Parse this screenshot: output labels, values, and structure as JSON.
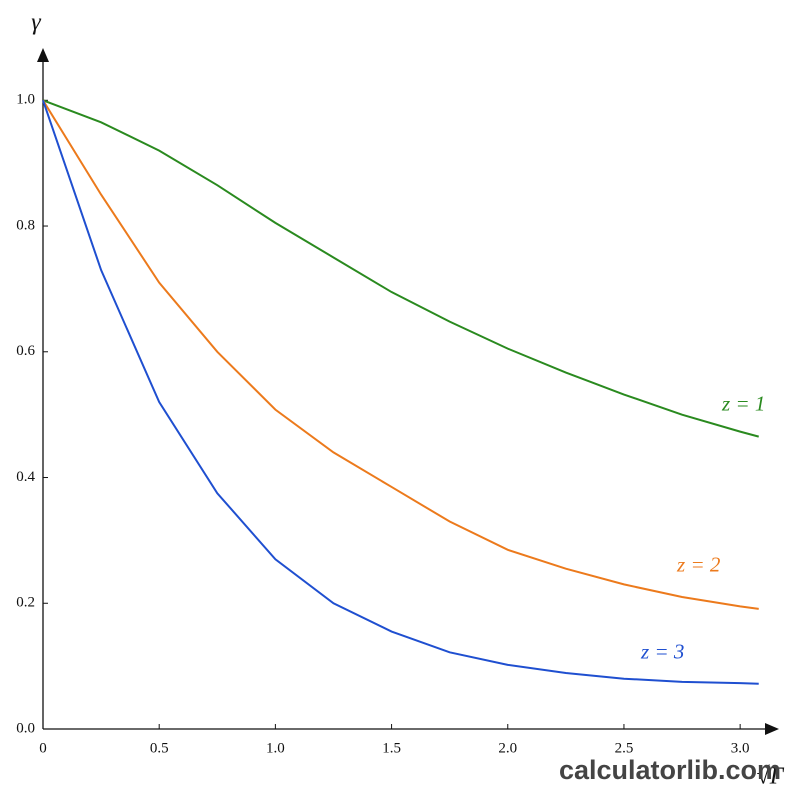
{
  "chart_data": {
    "type": "line",
    "ylabel": "γ",
    "xlabel": "√Γ",
    "watermark": "calculatorlib.com",
    "x": [
      0,
      0.25,
      0.5,
      0.75,
      1.0,
      1.25,
      1.5,
      1.75,
      2.0,
      2.25,
      2.5,
      2.75,
      3.0,
      3.08
    ],
    "series": [
      {
        "name": "z = 1",
        "color": "#2a8a1f",
        "values": [
          1.0,
          0.965,
          0.92,
          0.865,
          0.805,
          0.75,
          0.695,
          0.648,
          0.605,
          0.567,
          0.532,
          0.5,
          0.473,
          0.465
        ]
      },
      {
        "name": "z = 2",
        "color": "#ec7a1c",
        "values": [
          1.0,
          0.85,
          0.71,
          0.6,
          0.508,
          0.44,
          0.385,
          0.33,
          0.285,
          0.255,
          0.23,
          0.21,
          0.195,
          0.191
        ]
      },
      {
        "name": "z = 3",
        "color": "#1f4fd0",
        "values": [
          1.0,
          0.73,
          0.52,
          0.375,
          0.27,
          0.2,
          0.155,
          0.122,
          0.102,
          0.089,
          0.08,
          0.075,
          0.073,
          0.072
        ]
      }
    ],
    "xlim": [
      0,
      3.15
    ],
    "ylim": [
      0,
      1.08
    ],
    "xticks": [
      0,
      0.5,
      {
        "value": 1,
        "label": "1.0"
      },
      1.5,
      {
        "value": 2,
        "label": "2.0"
      },
      2.5,
      {
        "value": 3,
        "label": "3.0"
      }
    ],
    "yticks": [
      {
        "value": 0,
        "label": "0.0"
      },
      0.2,
      0.4,
      0.6,
      0.8,
      {
        "value": 1,
        "label": "1.0"
      }
    ]
  }
}
